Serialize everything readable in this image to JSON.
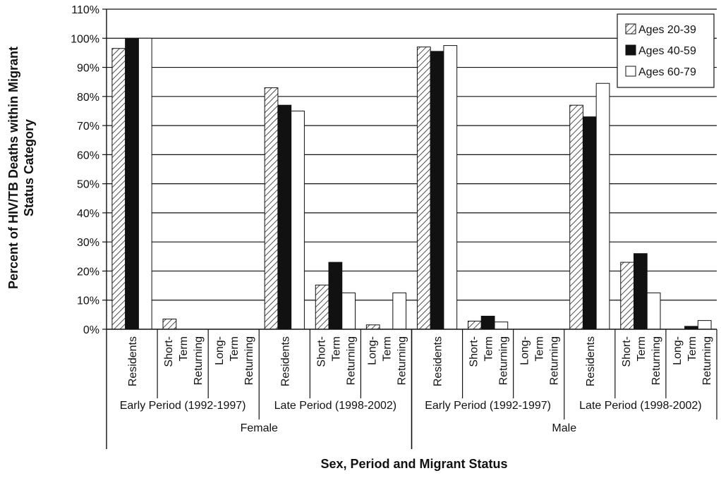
{
  "chart_data": {
    "type": "bar",
    "ylabel": "Percent of HIV/TB Deaths within Migrant Status Category",
    "ylabel_lines": [
      "Percent of HIV/TB Deaths within Migrant",
      "Status Category"
    ],
    "xlabel": "Sex, Period and Migrant Status",
    "ylim": [
      0,
      110
    ],
    "yticks": [
      "0%",
      "10%",
      "20%",
      "30%",
      "40%",
      "50%",
      "60%",
      "70%",
      "80%",
      "90%",
      "100%",
      "110%"
    ],
    "grid": true,
    "legend_position": "top-right",
    "sexes": [
      "Female",
      "Male"
    ],
    "periods": [
      {
        "label": "Early Period (1992-1997)",
        "sex": "Female"
      },
      {
        "label": "Late Period (1998-2002)",
        "sex": "Female"
      },
      {
        "label": "Early Period (1992-1997)",
        "sex": "Male"
      },
      {
        "label": "Late Period (1998-2002)",
        "sex": "Male"
      }
    ],
    "status_labels": [
      [
        "Residents"
      ],
      [
        "Short-",
        "Term",
        "Returning"
      ],
      [
        "Long-",
        "Term",
        "Returning"
      ]
    ],
    "categories": [
      "Female Early Residents",
      "Female Early Short-Term Returning",
      "Female Early Long-Term Returning",
      "Female Late Residents",
      "Female Late Short-Term Returning",
      "Female Late Long-Term Returning",
      "Male Early Residents",
      "Male Early Short-Term Returning",
      "Male Early Long-Term Returning",
      "Male Late Residents",
      "Male Late Short-Term Returning",
      "Male Late Long-Term Returning"
    ],
    "series": [
      {
        "name": "Ages 20-39",
        "pattern": "hatched",
        "values": [
          96.5,
          3.5,
          0,
          83,
          15.2,
          1.5,
          97,
          2.8,
          0,
          77,
          23,
          0
        ]
      },
      {
        "name": "Ages 40-59",
        "pattern": "solid",
        "values": [
          100,
          0,
          0,
          77,
          23,
          0,
          95.5,
          4.5,
          0,
          73,
          26,
          1
        ]
      },
      {
        "name": "Ages 60-79",
        "pattern": "open",
        "values": [
          100,
          0,
          0,
          75,
          12.5,
          12.5,
          97.5,
          2.5,
          0,
          84.5,
          12.5,
          3
        ]
      }
    ]
  }
}
